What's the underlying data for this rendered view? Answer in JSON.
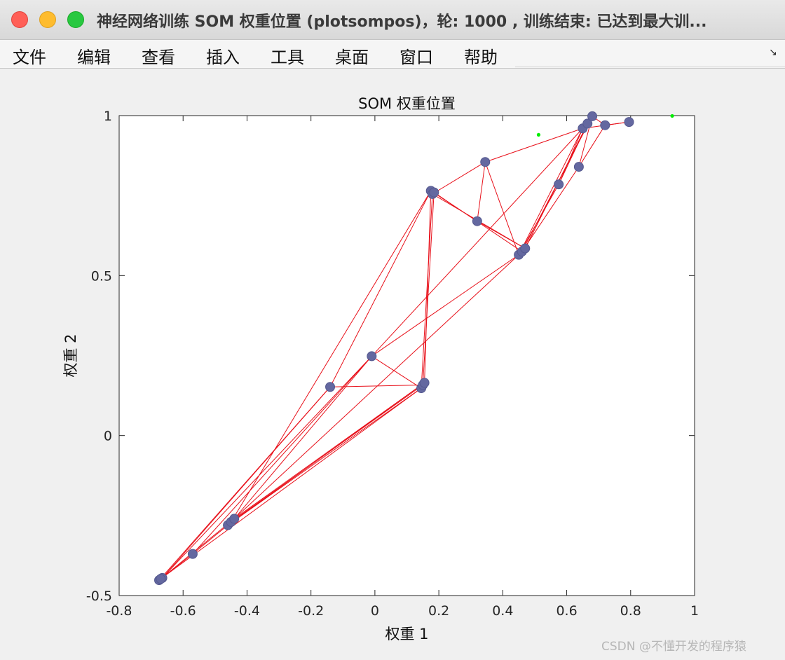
{
  "window": {
    "title": "神经网络训练 SOM 权重位置 (plotsompos)，轮: 1000 , 训练结束: 已达到最大训..."
  },
  "menu": {
    "items": [
      "文件",
      "编辑",
      "查看",
      "插入",
      "工具",
      "桌面",
      "窗口",
      "帮助"
    ]
  },
  "watermark": "CSDN @不懂开发的程序猿",
  "chart_data": {
    "type": "scatter",
    "title": "SOM 权重位置",
    "xlabel": "权重 1",
    "ylabel": "权重 2",
    "xlim": [
      -0.8,
      1
    ],
    "ylim": [
      -0.5,
      1
    ],
    "xticks": [
      "-0.8",
      "-0.6",
      "-0.4",
      "-0.2",
      "0",
      "0.2",
      "0.4",
      "0.6",
      "0.8",
      "1"
    ],
    "yticks": [
      "-0.5",
      "0",
      "0.5",
      "1"
    ],
    "grid": false,
    "neuron_color": "#6468a0",
    "edge_color": "#e8101a",
    "input_color": "#00ee00",
    "neurons": [
      {
        "x": -0.675,
        "y": -0.452
      },
      {
        "x": -0.665,
        "y": -0.445
      },
      {
        "x": -0.67,
        "y": -0.448
      },
      {
        "x": -0.57,
        "y": -0.37
      },
      {
        "x": -0.46,
        "y": -0.28
      },
      {
        "x": -0.45,
        "y": -0.27
      },
      {
        "x": -0.44,
        "y": -0.26
      },
      {
        "x": -0.14,
        "y": 0.152
      },
      {
        "x": -0.01,
        "y": 0.248
      },
      {
        "x": 0.145,
        "y": 0.148
      },
      {
        "x": 0.15,
        "y": 0.158
      },
      {
        "x": 0.155,
        "y": 0.165
      },
      {
        "x": 0.175,
        "y": 0.765
      },
      {
        "x": 0.18,
        "y": 0.755
      },
      {
        "x": 0.185,
        "y": 0.76
      },
      {
        "x": 0.32,
        "y": 0.67
      },
      {
        "x": 0.345,
        "y": 0.855
      },
      {
        "x": 0.45,
        "y": 0.565
      },
      {
        "x": 0.46,
        "y": 0.575
      },
      {
        "x": 0.47,
        "y": 0.585
      },
      {
        "x": 0.575,
        "y": 0.785
      },
      {
        "x": 0.638,
        "y": 0.84
      },
      {
        "x": 0.65,
        "y": 0.96
      },
      {
        "x": 0.665,
        "y": 0.975
      },
      {
        "x": 0.68,
        "y": 0.998
      },
      {
        "x": 0.72,
        "y": 0.97
      },
      {
        "x": 0.795,
        "y": 0.98
      }
    ],
    "edges": [
      [
        0,
        3
      ],
      [
        3,
        4
      ],
      [
        0,
        7
      ],
      [
        1,
        8
      ],
      [
        2,
        9
      ],
      [
        5,
        12
      ],
      [
        6,
        17
      ],
      [
        4,
        11
      ],
      [
        7,
        12
      ],
      [
        7,
        10
      ],
      [
        8,
        9
      ],
      [
        8,
        17
      ],
      [
        8,
        22
      ],
      [
        9,
        13
      ],
      [
        10,
        14
      ],
      [
        11,
        12
      ],
      [
        13,
        16
      ],
      [
        12,
        15
      ],
      [
        14,
        18
      ],
      [
        15,
        16
      ],
      [
        15,
        19
      ],
      [
        16,
        17
      ],
      [
        16,
        22
      ],
      [
        17,
        20
      ],
      [
        18,
        21
      ],
      [
        19,
        23
      ],
      [
        20,
        22
      ],
      [
        21,
        25
      ],
      [
        22,
        26
      ],
      [
        23,
        24
      ],
      [
        24,
        25
      ],
      [
        25,
        26
      ],
      [
        17,
        22
      ],
      [
        18,
        24
      ],
      [
        19,
        23
      ],
      [
        13,
        19
      ],
      [
        6,
        11
      ],
      [
        5,
        10
      ],
      [
        3,
        8
      ],
      [
        1,
        7
      ],
      [
        2,
        6
      ],
      [
        4,
        9
      ],
      [
        6,
        8
      ],
      [
        20,
        23
      ],
      [
        21,
        24
      ]
    ],
    "inputs": [
      {
        "x": 0.512,
        "y": 0.94
      },
      {
        "x": 0.93,
        "y": 0.999
      }
    ]
  }
}
